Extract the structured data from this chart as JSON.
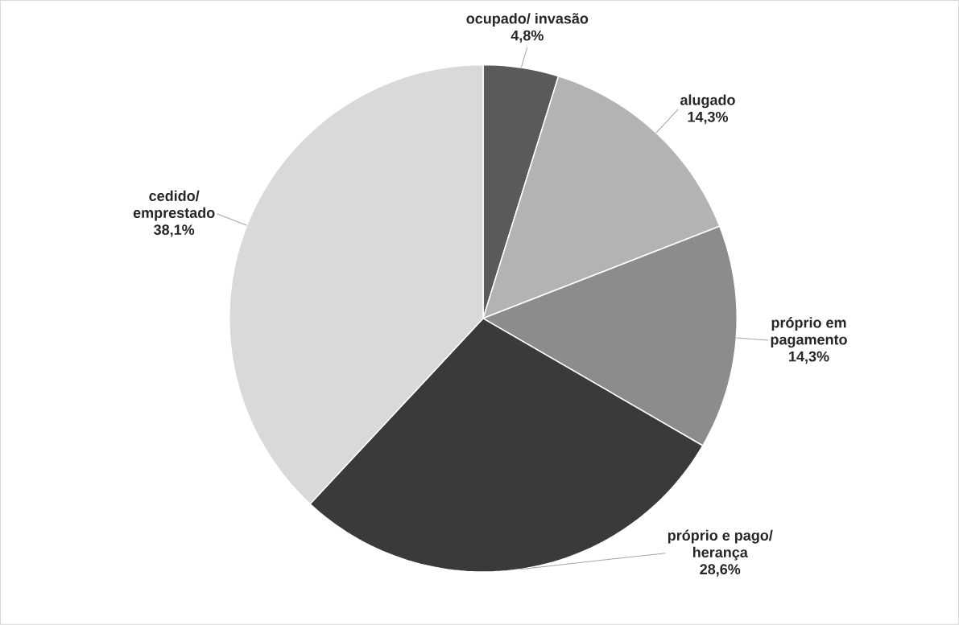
{
  "chart_data": {
    "type": "pie",
    "categories": [
      "ocupado/ invasão",
      "alugado",
      "próprio em pagamento",
      "próprio e pago/ herança",
      "cedido/ emprestado"
    ],
    "values": [
      4.8,
      14.3,
      14.3,
      28.6,
      38.1
    ],
    "value_labels": [
      "4,8%",
      "14,3%",
      "14,3%",
      "28,6%",
      "38,1%"
    ],
    "colors": [
      "#5a5a5a",
      "#b3b3b3",
      "#8c8c8c",
      "#3a3a3a",
      "#d9d9d9"
    ]
  }
}
